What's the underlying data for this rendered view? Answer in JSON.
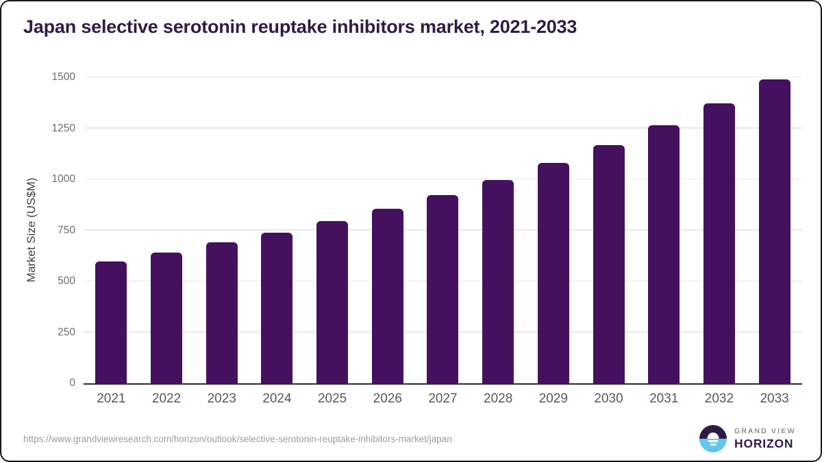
{
  "title": "Japan selective serotonin reuptake inhibitors market, 2021-2033",
  "chart_data": {
    "type": "bar",
    "title": "Japan selective serotonin reuptake inhibitors market, 2021-2033",
    "categories": [
      "2021",
      "2022",
      "2023",
      "2024",
      "2025",
      "2026",
      "2027",
      "2028",
      "2029",
      "2030",
      "2031",
      "2032",
      "2033"
    ],
    "values": [
      597,
      641,
      690,
      738,
      797,
      856,
      924,
      997,
      1081,
      1167,
      1264,
      1371,
      1490
    ],
    "xlabel": "",
    "ylabel": "Market Size (US$M)",
    "ylim": [
      0,
      1500
    ],
    "yticks": [
      0,
      250,
      500,
      750,
      1000,
      1250,
      1500
    ],
    "grid": "horizontal",
    "legend": "none",
    "bar_color": "#45115f"
  },
  "footer": {
    "source_url": "https://www.grandviewresearch.com/horizon/outlook/selective-serotonin-reuptake-inhibitors-market/japan",
    "logo": {
      "line1": "GRAND VIEW",
      "line2": "HORIZON"
    }
  },
  "colors": {
    "title_text": "#2f1c45",
    "axis_line": "#2b2b2b",
    "gridline": "#e8e8ea",
    "tick_text": "#6d6d70",
    "logo_purple": "#2c1a47",
    "logo_blue": "#63c6ee"
  }
}
